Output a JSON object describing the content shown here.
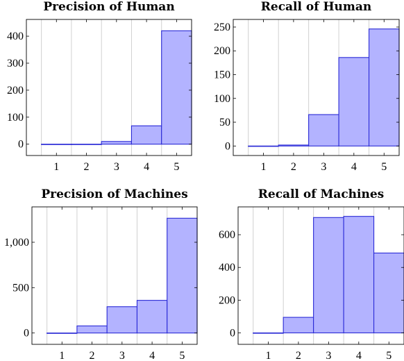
{
  "chart_data": [
    {
      "type": "bar",
      "title": "Precision of Human",
      "categories": [
        "1",
        "2",
        "3",
        "4",
        "5"
      ],
      "values": [
        0,
        0,
        10,
        68,
        420
      ],
      "ylim": [
        -42,
        462
      ],
      "yticks": [
        0,
        100,
        200,
        300,
        400
      ],
      "ytick_labels": [
        "0",
        "100",
        "200",
        "300",
        "400"
      ],
      "grid": "vertical"
    },
    {
      "type": "bar",
      "title": "Recall of Human",
      "categories": [
        "1",
        "2",
        "3",
        "4",
        "5"
      ],
      "values": [
        0,
        2,
        66,
        186,
        246
      ],
      "ylim": [
        -20,
        266
      ],
      "yticks": [
        0,
        50,
        100,
        150,
        200,
        250
      ],
      "ytick_labels": [
        "0",
        "50",
        "100",
        "150",
        "200",
        "250"
      ],
      "grid": "vertical"
    },
    {
      "type": "bar",
      "title": "Precision of Machines",
      "categories": [
        "1",
        "2",
        "3",
        "4",
        "5"
      ],
      "values": [
        0,
        78,
        290,
        360,
        1265
      ],
      "ylim": [
        -125,
        1390
      ],
      "yticks": [
        0,
        500,
        1000
      ],
      "ytick_labels": [
        "0",
        "500",
        "1,000"
      ],
      "grid": "vertical"
    },
    {
      "type": "bar",
      "title": "Recall of Machines",
      "categories": [
        "1",
        "2",
        "3",
        "4",
        "5"
      ],
      "values": [
        0,
        95,
        705,
        712,
        488
      ],
      "ylim": [
        -70,
        770
      ],
      "yticks": [
        0,
        200,
        400,
        600
      ],
      "ytick_labels": [
        "0",
        "200",
        "400",
        "600"
      ],
      "grid": "vertical"
    }
  ]
}
